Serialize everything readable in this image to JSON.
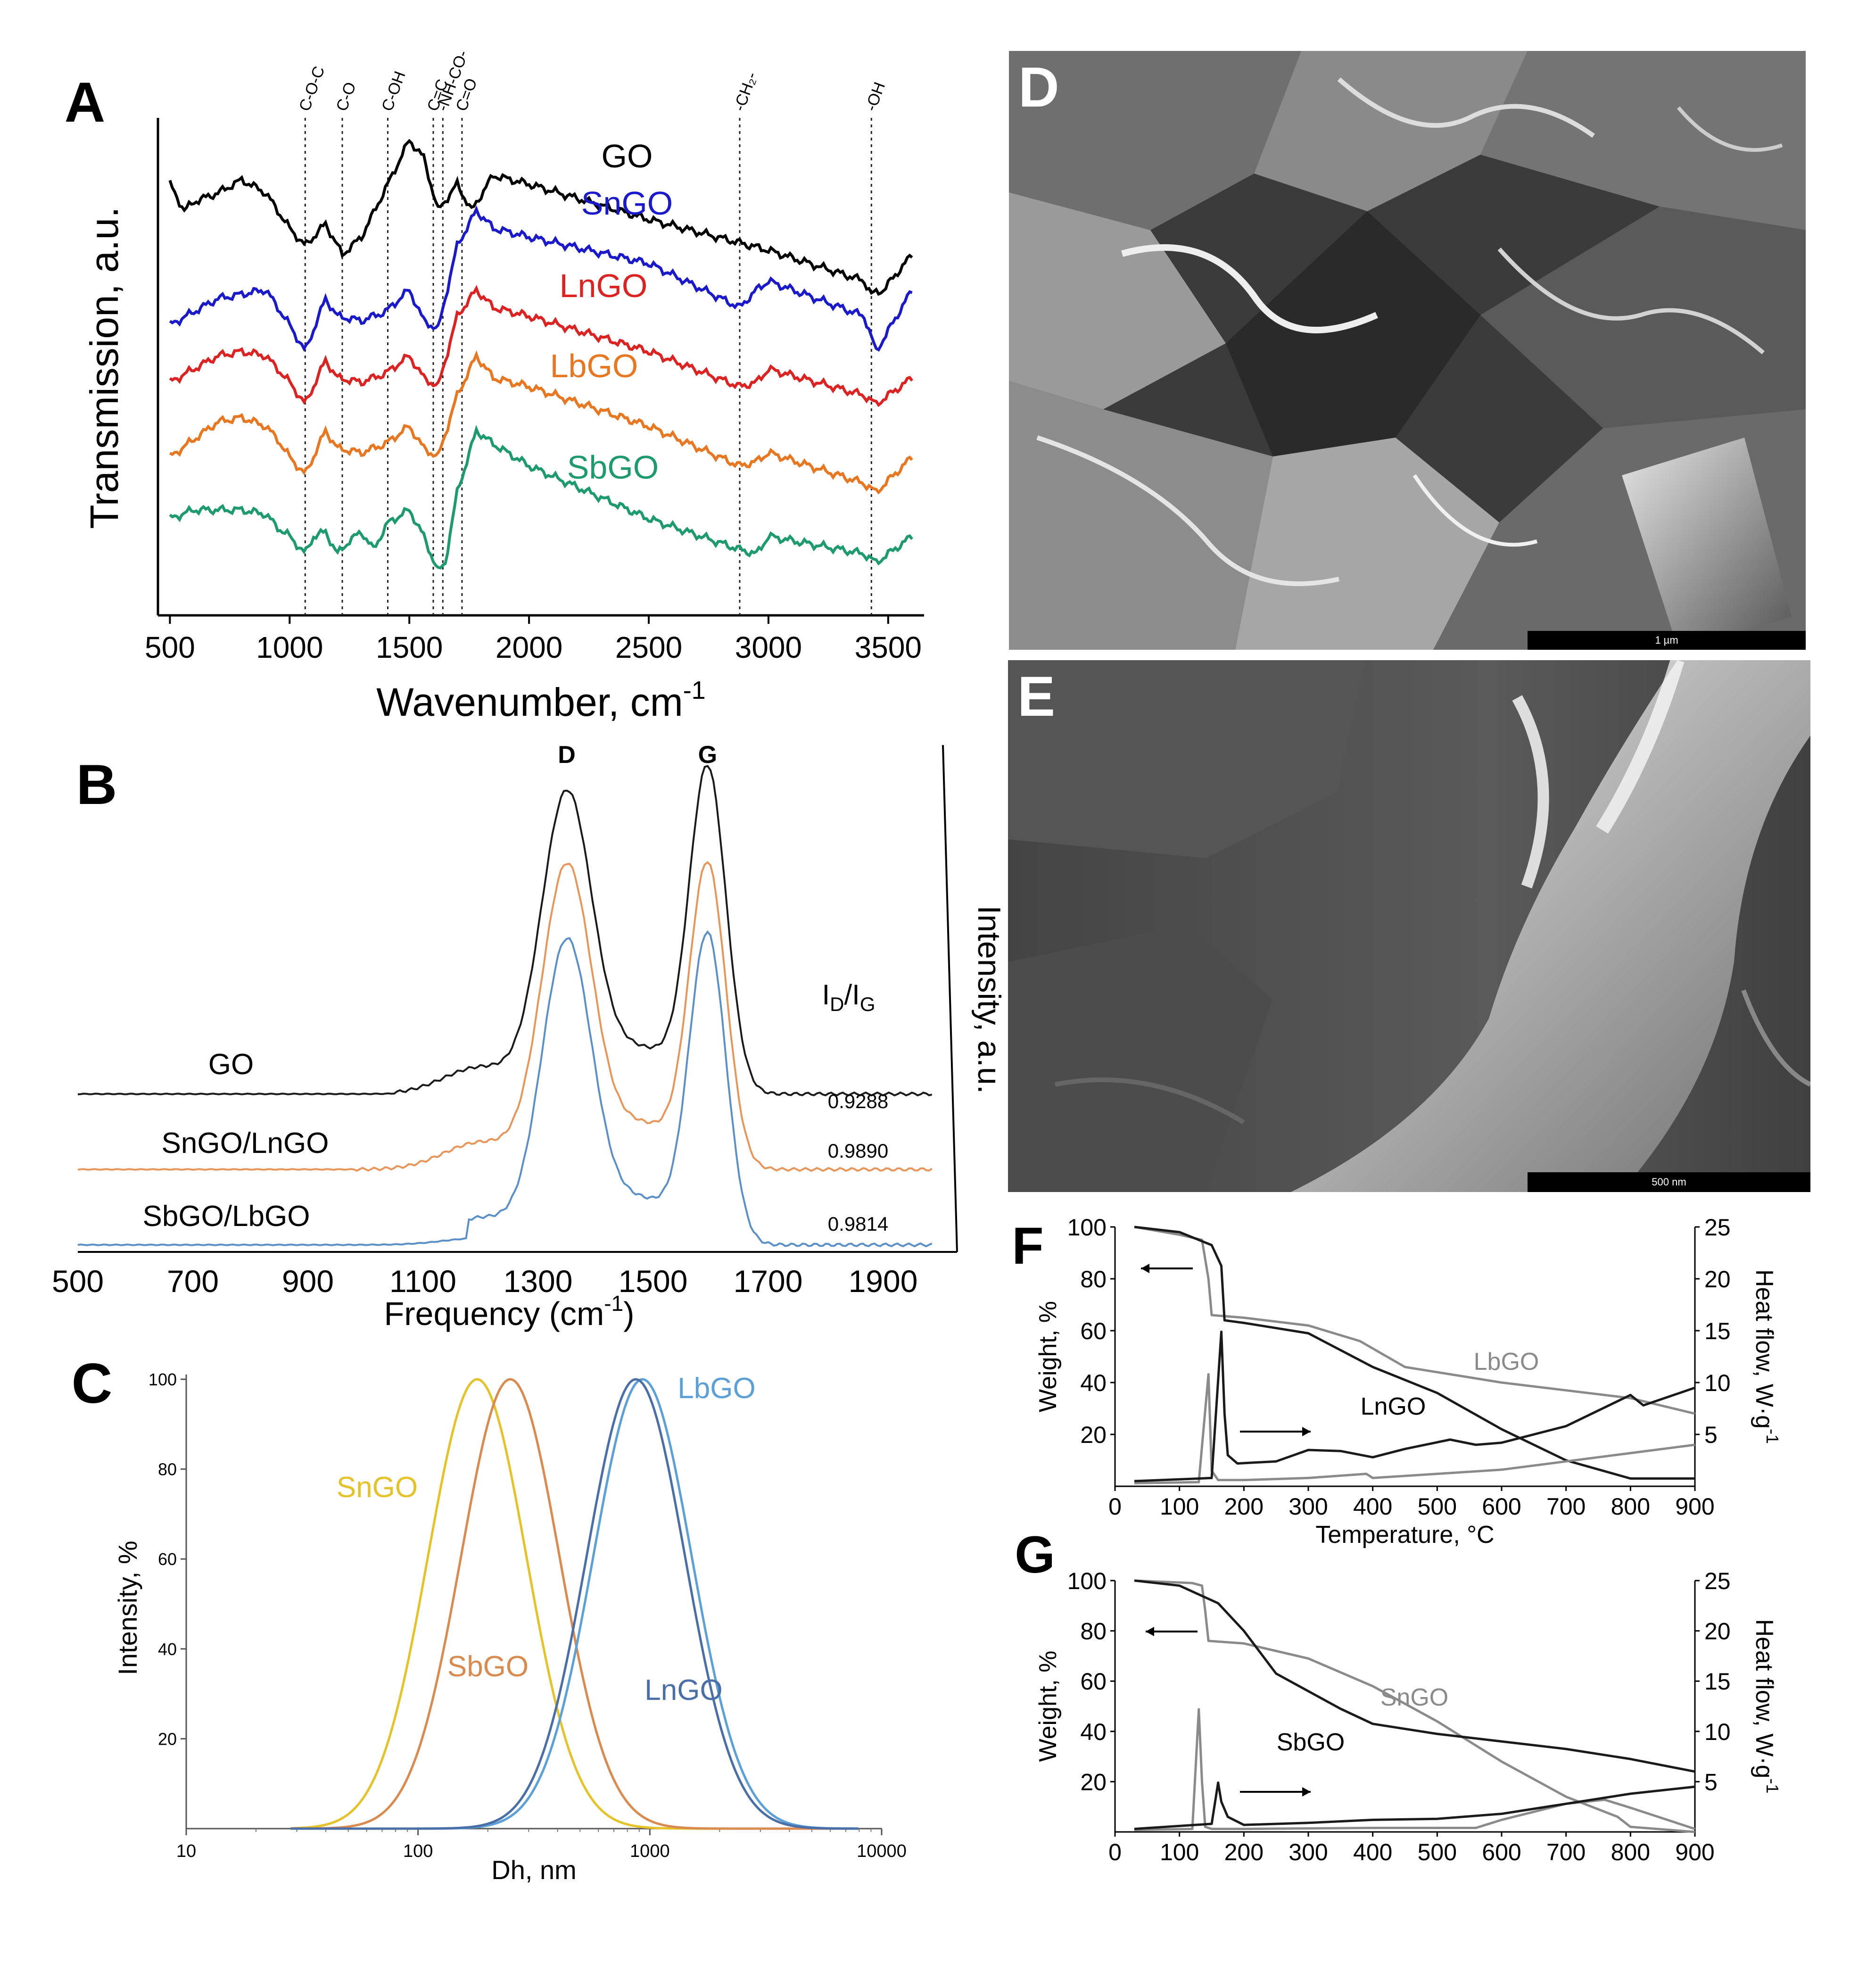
{
  "chart_data": [
    {
      "panel": "A",
      "type": "line",
      "title": "",
      "xlabel": "Wavenumber, cm",
      "xlabel_sup": "-1",
      "ylabel": "Transmission, a.u.",
      "xlim": [
        450,
        3650
      ],
      "xticks": [
        500,
        1000,
        1500,
        2000,
        2500,
        3000,
        3500
      ],
      "markers": [
        {
          "label": "C-O-C",
          "x": 1065
        },
        {
          "label": "C-O",
          "x": 1220
        },
        {
          "label": "C-OH",
          "x": 1410
        },
        {
          "label": "C=C",
          "x": 1600
        },
        {
          "label": "-NH-CO-",
          "x": 1640
        },
        {
          "label": "C=O",
          "x": 1720
        },
        {
          "label": "-CH₂-",
          "x": 2880
        },
        {
          "label": "-OH",
          "x": 3430
        }
      ],
      "series": [
        {
          "name": "GO",
          "color": "#000000",
          "x": [
            500,
            560,
            600,
            700,
            800,
            900,
            950,
            1000,
            1065,
            1150,
            1220,
            1300,
            1410,
            1500,
            1560,
            1620,
            1700,
            1760,
            1850,
            2000,
            2500,
            3000,
            3400,
            3430,
            3480,
            3600
          ],
          "values": [
            0.86,
            0.8,
            0.82,
            0.84,
            0.87,
            0.84,
            0.8,
            0.76,
            0.72,
            0.77,
            0.7,
            0.74,
            0.86,
            0.96,
            0.92,
            0.8,
            0.86,
            0.8,
            0.88,
            0.86,
            0.78,
            0.71,
            0.64,
            0.61,
            0.62,
            0.7
          ]
        },
        {
          "name": "SnGO",
          "color": "#1a1acc",
          "x": [
            500,
            600,
            700,
            800,
            900,
            950,
            1000,
            1065,
            1150,
            1200,
            1300,
            1400,
            1500,
            1560,
            1620,
            1700,
            1780,
            1850,
            2000,
            2500,
            2880,
            2950,
            3000,
            3400,
            3450,
            3600
          ],
          "values": [
            0.54,
            0.57,
            0.6,
            0.61,
            0.62,
            0.58,
            0.54,
            0.48,
            0.6,
            0.56,
            0.55,
            0.57,
            0.62,
            0.55,
            0.53,
            0.72,
            0.8,
            0.76,
            0.74,
            0.68,
            0.58,
            0.62,
            0.64,
            0.56,
            0.48,
            0.62
          ]
        },
        {
          "name": "LnGO",
          "color": "#dd2222",
          "x": [
            500,
            600,
            700,
            800,
            900,
            950,
            1000,
            1065,
            1150,
            1200,
            1300,
            1400,
            1500,
            1560,
            1620,
            1700,
            1780,
            1850,
            2000,
            2500,
            2880,
            2950,
            3000,
            3400,
            3450,
            3600
          ],
          "values": [
            0.41,
            0.44,
            0.47,
            0.48,
            0.47,
            0.44,
            0.41,
            0.36,
            0.46,
            0.42,
            0.41,
            0.43,
            0.47,
            0.42,
            0.4,
            0.56,
            0.62,
            0.58,
            0.56,
            0.48,
            0.4,
            0.41,
            0.44,
            0.38,
            0.36,
            0.42
          ]
        },
        {
          "name": "LbGO",
          "color": "#e87722",
          "x": [
            500,
            600,
            700,
            800,
            900,
            950,
            1000,
            1065,
            1150,
            1200,
            1300,
            1400,
            1500,
            1560,
            1620,
            1700,
            1780,
            1850,
            2000,
            2500,
            2880,
            2950,
            3000,
            3400,
            3450,
            3600
          ],
          "values": [
            0.24,
            0.28,
            0.32,
            0.33,
            0.31,
            0.28,
            0.24,
            0.2,
            0.3,
            0.26,
            0.25,
            0.27,
            0.31,
            0.26,
            0.24,
            0.38,
            0.47,
            0.42,
            0.4,
            0.31,
            0.22,
            0.23,
            0.25,
            0.18,
            0.16,
            0.24
          ]
        },
        {
          "name": "SbGO",
          "color": "#1e9b6e",
          "x": [
            500,
            600,
            700,
            800,
            900,
            950,
            1000,
            1065,
            1100,
            1150,
            1200,
            1250,
            1300,
            1350,
            1410,
            1500,
            1560,
            1620,
            1650,
            1700,
            1780,
            1850,
            2000,
            2500,
            2880,
            2950,
            3000,
            3400,
            3450,
            3600
          ],
          "values": [
            0.1,
            0.12,
            0.12,
            0.12,
            0.11,
            0.08,
            0.06,
            0.02,
            0.06,
            0.07,
            0.02,
            0.05,
            0.07,
            0.03,
            0.09,
            0.12,
            0.06,
            -0.02,
            0.0,
            0.16,
            0.3,
            0.27,
            0.22,
            0.1,
            0.03,
            0.02,
            0.06,
            0.02,
            0.0,
            0.06
          ]
        }
      ]
    },
    {
      "panel": "B",
      "type": "line",
      "xlabel": "Frequency (cm",
      "xlabel_sup": "-1",
      "xlabel_close": ")",
      "ylabel": "Intensity, a.u.",
      "xlim": [
        500,
        2000
      ],
      "xticks": [
        500,
        700,
        900,
        1100,
        1300,
        1500,
        1700,
        1900
      ],
      "peaks": [
        {
          "label": "D",
          "x": 1350
        },
        {
          "label": "G",
          "x": 1595
        }
      ],
      "ratio_header": "I",
      "ratio_sub_1": "D",
      "ratio_mid": "/I",
      "ratio_sub_2": "G",
      "series": [
        {
          "name": "GO",
          "color": "#1a1a1a",
          "ratio": "0.9288",
          "baseline": 0.0,
          "d_height": 0.42,
          "g_height": 0.46
        },
        {
          "name": "SnGO/LnGO",
          "color": "#e8955a",
          "ratio": "0.9890",
          "baseline": 0.0,
          "d_height": 0.44,
          "g_height": 0.44
        },
        {
          "name": "SbGO/LbGO",
          "color": "#5b8fc7",
          "ratio": "0.9814",
          "baseline": 0.0,
          "d_height": 0.46,
          "g_height": 0.47
        }
      ]
    },
    {
      "panel": "C",
      "type": "line",
      "xlabel": "Dh, nm",
      "ylabel": "Intensity, %",
      "x_scale": "log",
      "xlim": [
        10,
        10000
      ],
      "ylim": [
        0,
        100
      ],
      "xticks": [
        10,
        100,
        1000,
        10000
      ],
      "yticks": [
        20,
        40,
        60,
        80,
        100
      ],
      "series": [
        {
          "name": "SnGO",
          "color": "#e6c229",
          "peak_x": 180,
          "log_width": 0.3
        },
        {
          "name": "SbGO",
          "color": "#d98a4e",
          "peak_x": 250,
          "log_width": 0.3
        },
        {
          "name": "LbGO",
          "color": "#5ba0d6",
          "peak_x": 930,
          "log_width": 0.3
        },
        {
          "name": "LnGO",
          "color": "#4a6fa8",
          "peak_x": 870,
          "log_width": 0.3
        }
      ]
    },
    {
      "panel": "F",
      "type": "line",
      "xlabel": "Temperature, °C",
      "ylabel": "Weight, %",
      "y2label": "Heat flow, W·g",
      "y2label_sup": "-1",
      "xlim": [
        0,
        900
      ],
      "ylim": [
        0,
        100
      ],
      "y2lim": [
        0,
        25
      ],
      "xticks": [
        0,
        100,
        200,
        300,
        400,
        500,
        600,
        700,
        800,
        900
      ],
      "yticks": [
        20,
        40,
        60,
        80,
        100
      ],
      "y2ticks": [
        5,
        10,
        15,
        20,
        25
      ],
      "series": [
        {
          "name": "LbGO",
          "kind": "weight",
          "color": "#8a8a8a",
          "x": [
            30,
            100,
            135,
            145,
            150,
            200,
            300,
            380,
            450,
            600,
            800,
            900
          ],
          "values": [
            100,
            97,
            95,
            80,
            66,
            65,
            62,
            56,
            46,
            40,
            34,
            28
          ]
        },
        {
          "name": "LnGO",
          "kind": "weight",
          "color": "#1a1a1a",
          "x": [
            30,
            100,
            150,
            165,
            170,
            200,
            300,
            400,
            500,
            600,
            700,
            800,
            900
          ],
          "values": [
            100,
            98,
            93,
            85,
            64,
            63,
            59,
            46,
            36,
            22,
            10,
            3,
            3
          ]
        },
        {
          "name": "LbGO heat flow",
          "kind": "heat",
          "color": "#8a8a8a",
          "x": [
            30,
            130,
            145,
            150,
            160,
            200,
            300,
            390,
            400,
            500,
            600,
            700,
            800,
            900
          ],
          "values": [
            0.3,
            0.4,
            10.8,
            1.5,
            0.6,
            0.6,
            0.8,
            1.2,
            0.8,
            1.2,
            1.6,
            2.4,
            3.2,
            4.0
          ]
        },
        {
          "name": "LnGO heat flow",
          "kind": "heat",
          "color": "#1a1a1a",
          "x": [
            30,
            150,
            165,
            170,
            175,
            190,
            250,
            300,
            350,
            400,
            450,
            520,
            560,
            600,
            700,
            800,
            820,
            900
          ],
          "values": [
            0.5,
            0.8,
            14.9,
            7,
            3,
            2.2,
            2.4,
            3.5,
            3.4,
            2.8,
            3.6,
            4.5,
            4,
            4.2,
            5.8,
            8.8,
            7.8,
            9.5
          ]
        }
      ],
      "legend_labels": {
        "top": "LbGO",
        "bottom": "LnGO"
      }
    },
    {
      "panel": "G",
      "type": "line",
      "ylabel": "Weight, %",
      "y2label": "Heat flow, W·g",
      "y2label_sup": "-1",
      "xlim": [
        0,
        900
      ],
      "ylim": [
        0,
        100
      ],
      "y2lim": [
        0,
        25
      ],
      "xticks": [
        0,
        100,
        200,
        300,
        400,
        500,
        600,
        700,
        800,
        900
      ],
      "yticks": [
        20,
        40,
        60,
        80,
        100
      ],
      "y2ticks": [
        5,
        10,
        15,
        20,
        25
      ],
      "series": [
        {
          "name": "SnGO",
          "kind": "weight",
          "color": "#8a8a8a",
          "x": [
            30,
            120,
            135,
            140,
            145,
            200,
            300,
            400,
            500,
            600,
            700,
            780,
            800,
            900
          ],
          "values": [
            100,
            99,
            98,
            88,
            76,
            75,
            69,
            58,
            44,
            28,
            14,
            6,
            2,
            0
          ]
        },
        {
          "name": "SbGO",
          "kind": "weight",
          "color": "#1a1a1a",
          "x": [
            30,
            100,
            160,
            200,
            250,
            300,
            350,
            400,
            500,
            600,
            700,
            800,
            900
          ],
          "values": [
            100,
            98,
            91,
            80,
            63,
            56,
            49,
            43,
            39,
            36,
            33,
            29,
            24
          ]
        },
        {
          "name": "SnGO heat flow",
          "kind": "heat",
          "color": "#8a8a8a",
          "x": [
            30,
            120,
            130,
            135,
            140,
            150,
            200,
            400,
            560,
            600,
            700,
            760,
            800,
            900
          ],
          "values": [
            0.2,
            0.3,
            12.2,
            5,
            0.5,
            0.3,
            0.3,
            0.4,
            0.4,
            1.2,
            2.8,
            3.2,
            2.4,
            0.3
          ]
        },
        {
          "name": "SbGO heat flow",
          "kind": "heat",
          "color": "#1a1a1a",
          "x": [
            30,
            150,
            160,
            165,
            175,
            200,
            300,
            400,
            500,
            600,
            700,
            800,
            900
          ],
          "values": [
            0.3,
            0.8,
            4.9,
            3,
            1.5,
            0.7,
            0.9,
            1.2,
            1.3,
            1.8,
            2.8,
            3.8,
            4.5
          ]
        }
      ],
      "legend_labels": {
        "top": "SnGO",
        "bottom": "SbGO"
      }
    }
  ],
  "panels": {
    "a_letter": "A",
    "b_letter": "B",
    "c_letter": "C",
    "d_letter": "D",
    "e_letter": "E",
    "f_letter": "F",
    "g_letter": "G",
    "d_scale": "1 µm",
    "e_scale": "500 nm"
  }
}
